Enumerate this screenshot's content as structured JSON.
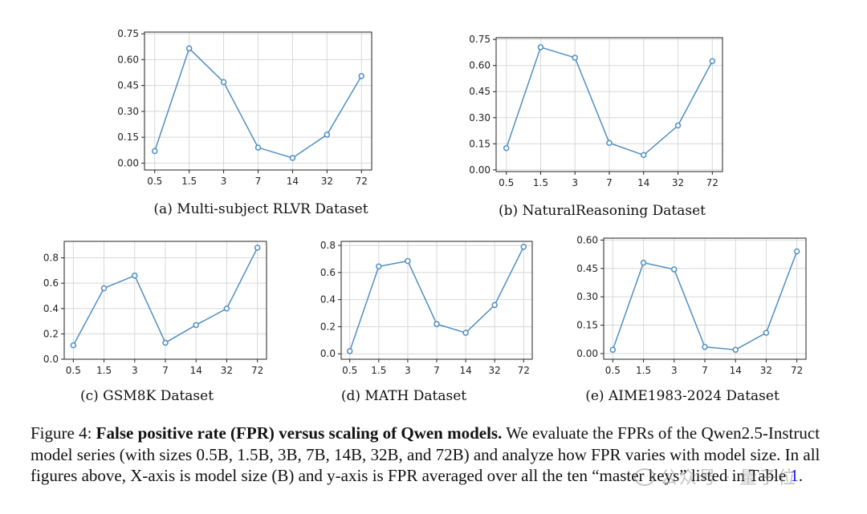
{
  "chart_data": [
    {
      "type": "line",
      "caption": "(a) Multi-subject RLVR Dataset",
      "categories": [
        "0.5",
        "1.5",
        "3",
        "7",
        "14",
        "32",
        "72"
      ],
      "values": [
        0.07,
        0.665,
        0.47,
        0.09,
        0.03,
        0.165,
        0.505
      ],
      "yticks": [
        "0.00",
        "0.15",
        "0.30",
        "0.45",
        "0.60",
        "0.75"
      ],
      "ylim": [
        -0.04,
        0.76
      ],
      "grid": true
    },
    {
      "type": "line",
      "caption": "(b) NaturalReasoning Dataset",
      "categories": [
        "0.5",
        "1.5",
        "3",
        "7",
        "14",
        "32",
        "72"
      ],
      "values": [
        0.125,
        0.705,
        0.645,
        0.155,
        0.085,
        0.255,
        0.625
      ],
      "yticks": [
        "0.00",
        "0.15",
        "0.30",
        "0.45",
        "0.60",
        "0.75"
      ],
      "ylim": [
        -0.01,
        0.76
      ],
      "grid": true
    },
    {
      "type": "line",
      "caption": "(c) GSM8K Dataset",
      "categories": [
        "0.5",
        "1.5",
        "3",
        "7",
        "14",
        "32",
        "72"
      ],
      "values": [
        0.11,
        0.56,
        0.66,
        0.13,
        0.27,
        0.4,
        0.88
      ],
      "yticks": [
        "0.0",
        "0.2",
        "0.4",
        "0.6",
        "0.8"
      ],
      "ylim": [
        0.0,
        0.93
      ],
      "grid": true
    },
    {
      "type": "line",
      "caption": "(d) MATH Dataset",
      "categories": [
        "0.5",
        "1.5",
        "3",
        "7",
        "14",
        "32",
        "72"
      ],
      "values": [
        0.02,
        0.645,
        0.685,
        0.22,
        0.155,
        0.36,
        0.79
      ],
      "yticks": [
        "0.0",
        "0.2",
        "0.4",
        "0.6",
        "0.8"
      ],
      "ylim": [
        -0.04,
        0.83
      ],
      "grid": true
    },
    {
      "type": "line",
      "caption": "(e) AIME1983-2024 Dataset",
      "categories": [
        "0.5",
        "1.5",
        "3",
        "7",
        "14",
        "32",
        "72"
      ],
      "values": [
        0.02,
        0.48,
        0.445,
        0.035,
        0.02,
        0.11,
        0.54
      ],
      "yticks": [
        "0.00",
        "0.15",
        "0.30",
        "0.45",
        "0.60"
      ],
      "ylim": [
        -0.03,
        0.61
      ],
      "grid": true
    }
  ],
  "figure_caption": {
    "label": "Figure 4:",
    "bold": "False positive rate (FPR) versus scaling of Qwen models.",
    "text": "We evaluate the FPRs of the Qwen2.5-Instruct model series (with sizes 0.5B, 1.5B, 3B, 7B, 14B, 32B, and 72B) and analyze how FPR varies with model size. In all figures above, X-axis is model size (B) and y-axis is FPR averaged over all the ten “master keys” listed in Table",
    "table_ref": "1",
    "end": "."
  },
  "watermark": "公众号 · 量子位"
}
